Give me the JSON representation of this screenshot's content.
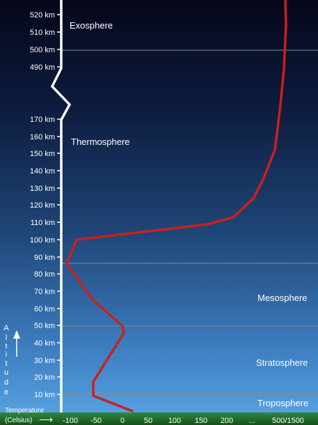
{
  "altitude_ticks": [
    {
      "label": "520 km"
    },
    {
      "label": "510 km"
    },
    {
      "label": "500 km"
    },
    {
      "label": "490 km"
    },
    {
      "label": "170 km"
    },
    {
      "label": "160 km"
    },
    {
      "label": "150 km"
    },
    {
      "label": "140 km"
    },
    {
      "label": "130 km"
    },
    {
      "label": "120 km"
    },
    {
      "label": "110 km"
    },
    {
      "label": "100 km"
    },
    {
      "label": "90 km"
    },
    {
      "label": "80 km"
    },
    {
      "label": "70 km"
    },
    {
      "label": "60 km"
    },
    {
      "label": "50 km"
    },
    {
      "label": "40 km"
    },
    {
      "label": "30 km"
    },
    {
      "label": "20 km"
    },
    {
      "label": "10 km"
    }
  ],
  "layers": [
    {
      "name": "Exosphere"
    },
    {
      "name": "Thermosphere"
    },
    {
      "name": "Mesosphere"
    },
    {
      "name": "Stratosphere"
    },
    {
      "name": "Troposphere"
    }
  ],
  "altitude_axis_label": [
    "A",
    "l",
    "t",
    "i",
    "t",
    "u",
    "d",
    "e"
  ],
  "temperature_label_line1": "Temperature",
  "temperature_label_line2": "(Celsius)",
  "temperature_arrow": "⟶",
  "temperature_ticks": [
    "-100",
    "-50",
    "0",
    "50",
    "100",
    "150",
    "200",
    "...",
    "500/1500"
  ],
  "colors": {
    "profile_line": "#cc1f1f",
    "sky_top": "#05071a",
    "sky_mid": "#1f4678",
    "sky_bottom": "#5aa6e6",
    "ground": "#1e6b2a",
    "axis": "#ffffff",
    "boundary_line": "#7f7f7f"
  }
}
